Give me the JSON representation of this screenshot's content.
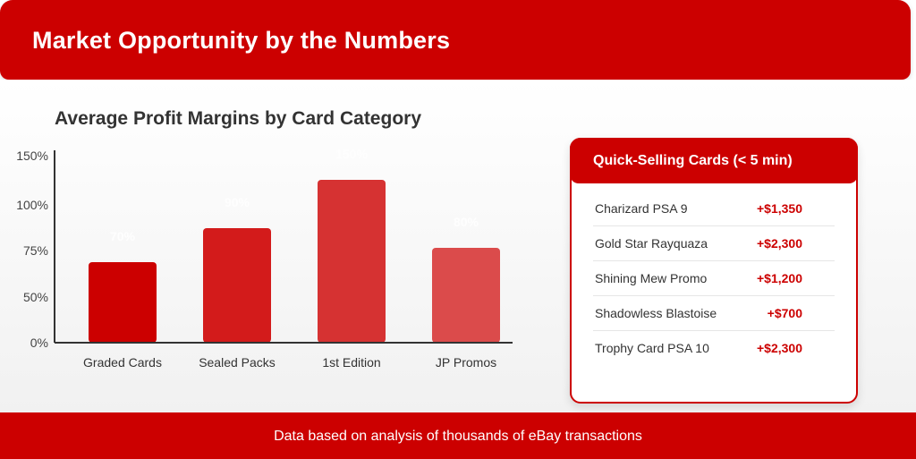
{
  "header": {
    "title": "Market Opportunity by the Numbers"
  },
  "chart_data": {
    "type": "bar",
    "title": "Average Profit Margins by Card Category",
    "categories": [
      "Graded Cards",
      "Sealed Packs",
      "1st Edition",
      "JP Promos"
    ],
    "values": [
      70,
      90,
      150,
      80
    ],
    "value_labels": [
      "70%",
      "90%",
      "150%",
      "80%"
    ],
    "ylim": [
      0,
      150
    ],
    "yticks": [
      0,
      50,
      75,
      100,
      150
    ],
    "ytick_labels": [
      "0%",
      "50%",
      "75%",
      "100%",
      "150%"
    ],
    "colors": [
      "#cc0000",
      "#d31b1b",
      "#d63232",
      "#db4b4b"
    ],
    "grid": false,
    "legend": "none"
  },
  "quick_selling": {
    "title": "Quick-Selling Cards (< 5 min)",
    "items": [
      {
        "name": "Charizard PSA 9",
        "price": "+$1,350"
      },
      {
        "name": "Gold Star Rayquaza",
        "price": "+$2,300"
      },
      {
        "name": "Shining Mew Promo",
        "price": "+$1,200"
      },
      {
        "name": "Shadowless Blastoise",
        "price": "+$700"
      },
      {
        "name": "Trophy Card PSA 10",
        "price": "+$2,300"
      }
    ]
  },
  "footer": {
    "text": "Data based on analysis of thousands of eBay transactions"
  }
}
